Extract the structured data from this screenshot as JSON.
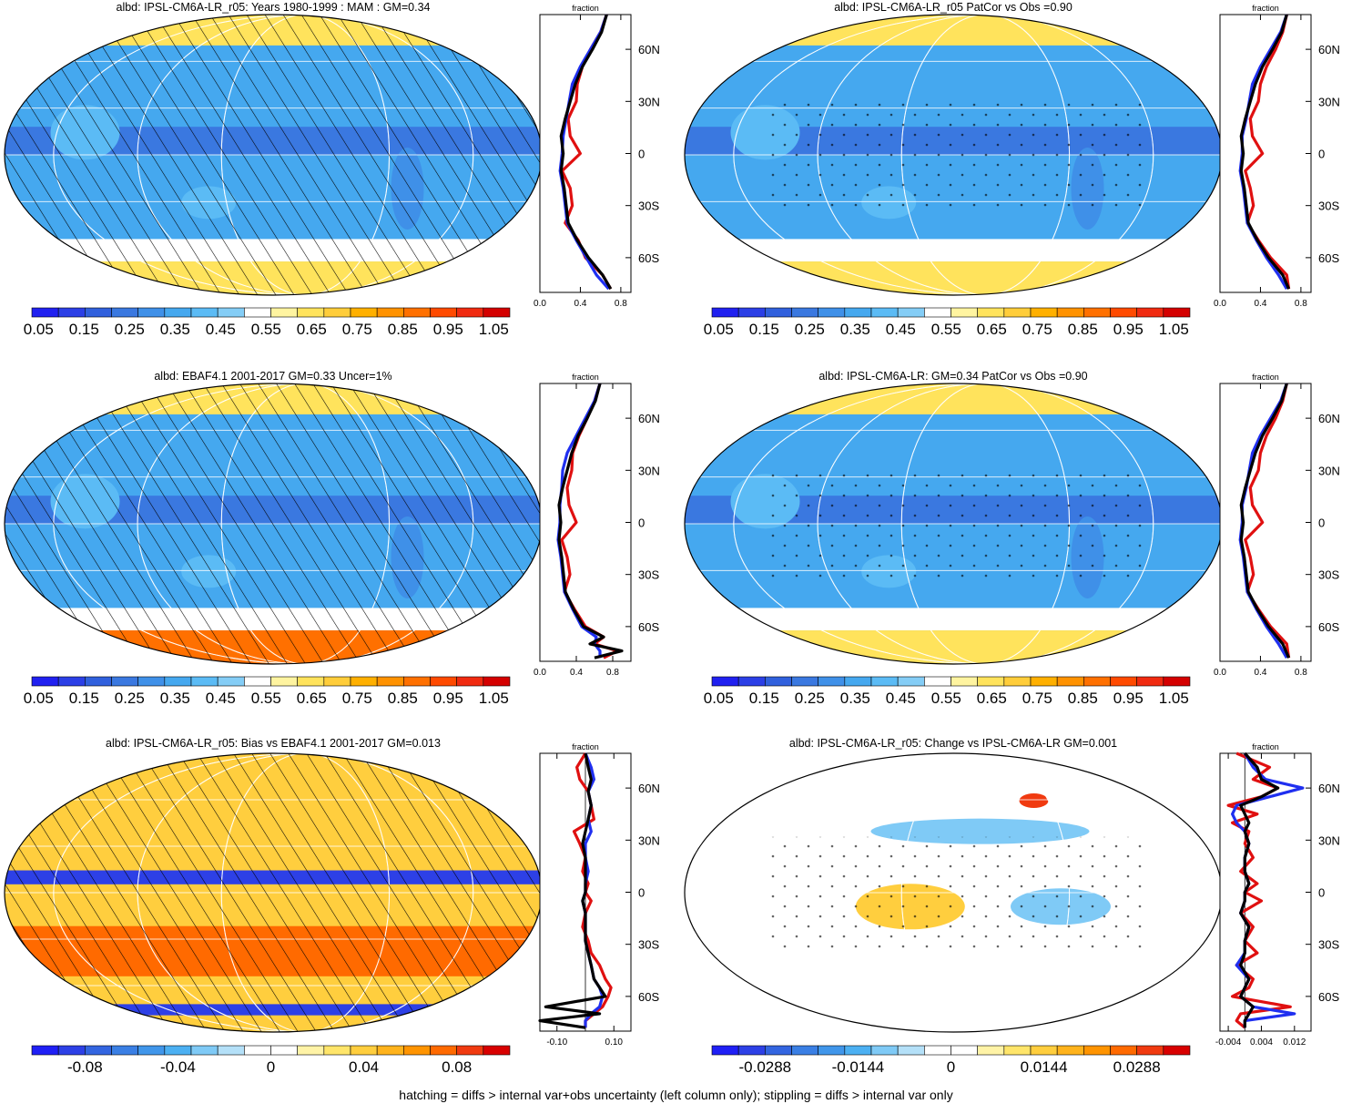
{
  "footer": "hatching = diffs > internal var+obs uncertainty (left column only); stippling = diffs > internal var only",
  "colors": {
    "scale_abs": [
      "#2020f0",
      "#2b3fe6",
      "#3060dd",
      "#3a78e0",
      "#3f90e8",
      "#45a8ef",
      "#5bbbf5",
      "#84cdf6",
      "#ffffff",
      "#fff4a0",
      "#ffe35c",
      "#ffcd3a",
      "#ffb000",
      "#ff9200",
      "#ff7000",
      "#ff4a00",
      "#f02a10",
      "#d40000"
    ],
    "scale_diff": [
      "#1f1ff5",
      "#2d40e6",
      "#3365e0",
      "#3a7fe4",
      "#4096ea",
      "#4cb0f2",
      "#7fcaf6",
      "#b4e0f8",
      "#ffffff",
      "#ffffff",
      "#fff3a6",
      "#ffe56a",
      "#ffce3e",
      "#ffb31c",
      "#ff9400",
      "#ff6a00",
      "#f03a10",
      "#d80000"
    ],
    "obs": "#e01010",
    "model": "#1f2ff0",
    "ens": "#000000"
  },
  "chart_data": [
    {
      "type": "heatmap",
      "title": "albd: IPSL-CM6A-LR_r05: Years 1980-1999 : MAM : GM=0.34",
      "colorbar_scale": "abs",
      "colorbar_labels": [
        "0.05",
        "0.15",
        "0.25",
        "0.35",
        "0.45",
        "0.55",
        "0.65",
        "0.75",
        "0.85",
        "0.95",
        "1.05"
      ],
      "overlay": "hatching",
      "profile": {
        "title": "fraction",
        "xticks": [
          "0.0",
          "0.4",
          "0.8"
        ],
        "xlim": [
          0,
          0.9
        ],
        "yticks": [
          "60N",
          "30N",
          "0",
          "30S",
          "60S"
        ],
        "lat": [
          80,
          70,
          60,
          50,
          40,
          30,
          20,
          10,
          0,
          -10,
          -20,
          -30,
          -40,
          -50,
          -60,
          -70,
          -78
        ],
        "series": [
          {
            "color": "obs",
            "values": [
              0.66,
              0.6,
              0.5,
              0.42,
              0.37,
              0.36,
              0.28,
              0.3,
              0.4,
              0.22,
              0.3,
              0.32,
              0.25,
              0.38,
              0.45,
              0.62,
              0.7
            ]
          },
          {
            "color": "model",
            "values": [
              0.66,
              0.6,
              0.5,
              0.4,
              0.32,
              0.29,
              0.26,
              0.23,
              0.22,
              0.2,
              0.23,
              0.25,
              0.27,
              0.36,
              0.46,
              0.56,
              0.68
            ]
          },
          {
            "color": "ens",
            "values": [
              0.66,
              0.61,
              0.52,
              0.42,
              0.35,
              0.3,
              0.25,
              0.21,
              0.23,
              0.21,
              0.24,
              0.26,
              0.28,
              0.37,
              0.48,
              0.62,
              0.7
            ]
          }
        ]
      }
    },
    {
      "type": "heatmap",
      "title": "albd: IPSL-CM6A-LR_r05 PatCor vs Obs =0.90",
      "colorbar_scale": "abs",
      "colorbar_labels": [
        "0.05",
        "0.15",
        "0.25",
        "0.35",
        "0.45",
        "0.55",
        "0.65",
        "0.75",
        "0.85",
        "0.95",
        "1.05"
      ],
      "overlay": "stippling",
      "profile": {
        "title": "fraction",
        "xticks": [
          "0.0",
          "0.4",
          "0.8"
        ],
        "xlim": [
          0,
          0.9
        ],
        "yticks": [
          "60N",
          "30N",
          "0",
          "30S",
          "60S"
        ],
        "lat": [
          80,
          70,
          60,
          50,
          40,
          30,
          20,
          10,
          0,
          -10,
          -20,
          -30,
          -40,
          -50,
          -60,
          -70,
          -78
        ],
        "series": [
          {
            "color": "obs",
            "values": [
              0.66,
              0.62,
              0.55,
              0.46,
              0.4,
              0.38,
              0.3,
              0.32,
              0.42,
              0.25,
              0.3,
              0.33,
              0.27,
              0.38,
              0.5,
              0.66,
              0.68
            ]
          },
          {
            "color": "model",
            "values": [
              0.66,
              0.6,
              0.5,
              0.4,
              0.32,
              0.29,
              0.26,
              0.22,
              0.22,
              0.2,
              0.23,
              0.25,
              0.27,
              0.36,
              0.46,
              0.58,
              0.66
            ]
          },
          {
            "color": "ens",
            "values": [
              0.66,
              0.61,
              0.52,
              0.42,
              0.35,
              0.3,
              0.25,
              0.21,
              0.23,
              0.21,
              0.24,
              0.26,
              0.28,
              0.37,
              0.48,
              0.62,
              0.68
            ]
          }
        ]
      }
    },
    {
      "type": "heatmap",
      "title": "albd: EBAF4.1 2001-2017 GM=0.33 Uncer=1%",
      "colorbar_scale": "abs",
      "colorbar_labels": [
        "0.05",
        "0.15",
        "0.25",
        "0.35",
        "0.45",
        "0.55",
        "0.65",
        "0.75",
        "0.85",
        "0.95",
        "1.05"
      ],
      "overlay": "hatching",
      "profile": {
        "title": "fraction",
        "xticks": [
          "0.0",
          "0.4",
          "0.8"
        ],
        "xlim": [
          0,
          1.0
        ],
        "yticks": [
          "60N",
          "30N",
          "0",
          "30S",
          "60S"
        ],
        "lat": [
          80,
          70,
          60,
          50,
          40,
          30,
          20,
          10,
          0,
          -10,
          -20,
          -30,
          -40,
          -50,
          -60,
          -66,
          -70,
          -74,
          -78
        ],
        "series": [
          {
            "color": "obs",
            "values": [
              0.66,
              0.6,
              0.52,
              0.43,
              0.36,
              0.35,
              0.3,
              0.32,
              0.4,
              0.24,
              0.3,
              0.33,
              0.27,
              0.38,
              0.5,
              0.7,
              0.6,
              0.85,
              0.7
            ]
          },
          {
            "color": "model",
            "values": [
              0.66,
              0.6,
              0.5,
              0.4,
              0.3,
              0.25,
              0.24,
              0.22,
              0.22,
              0.2,
              0.23,
              0.25,
              0.27,
              0.36,
              0.46,
              0.62,
              0.6,
              0.66,
              0.66
            ]
          },
          {
            "color": "ens",
            "values": [
              0.66,
              0.61,
              0.52,
              0.42,
              0.35,
              0.3,
              0.25,
              0.21,
              0.23,
              0.21,
              0.24,
              0.26,
              0.28,
              0.37,
              0.48,
              0.7,
              0.55,
              0.9,
              0.6
            ]
          }
        ]
      }
    },
    {
      "type": "heatmap",
      "title": "albd: IPSL-CM6A-LR: GM=0.34 PatCor vs Obs =0.90",
      "colorbar_scale": "abs",
      "colorbar_labels": [
        "0.05",
        "0.15",
        "0.25",
        "0.35",
        "0.45",
        "0.55",
        "0.65",
        "0.75",
        "0.85",
        "0.95",
        "1.05"
      ],
      "overlay": "stippling",
      "profile": {
        "title": "fraction",
        "xticks": [
          "0.0",
          "0.4",
          "0.8"
        ],
        "xlim": [
          0,
          0.9
        ],
        "yticks": [
          "60N",
          "30N",
          "0",
          "30S",
          "60S"
        ],
        "lat": [
          80,
          70,
          60,
          50,
          40,
          30,
          20,
          10,
          0,
          -10,
          -20,
          -30,
          -40,
          -50,
          -60,
          -70,
          -78
        ],
        "series": [
          {
            "color": "obs",
            "values": [
              0.66,
              0.62,
              0.55,
              0.46,
              0.4,
              0.38,
              0.3,
              0.32,
              0.42,
              0.25,
              0.3,
              0.33,
              0.27,
              0.38,
              0.5,
              0.66,
              0.68
            ]
          },
          {
            "color": "model",
            "values": [
              0.66,
              0.6,
              0.5,
              0.4,
              0.32,
              0.29,
              0.26,
              0.22,
              0.22,
              0.2,
              0.23,
              0.25,
              0.27,
              0.36,
              0.46,
              0.58,
              0.66
            ]
          },
          {
            "color": "ens",
            "values": [
              0.66,
              0.61,
              0.52,
              0.42,
              0.35,
              0.3,
              0.25,
              0.21,
              0.23,
              0.21,
              0.24,
              0.26,
              0.28,
              0.37,
              0.48,
              0.62,
              0.68
            ]
          }
        ]
      }
    },
    {
      "type": "heatmap",
      "title": "albd: IPSL-CM6A-LR_r05: Bias vs EBAF4.1 2001-2017 GM=0.013",
      "colorbar_scale": "diff",
      "colorbar_labels": [
        "-0.08",
        "-0.04",
        "0",
        "0.04",
        "0.08"
      ],
      "overlay": "hatching",
      "profile": {
        "title": "fraction",
        "xticks": [
          "-0.10",
          "0.10"
        ],
        "xlim": [
          -0.16,
          0.16
        ],
        "zero_line": true,
        "yticks": [
          "60N",
          "30N",
          "0",
          "30S",
          "60S"
        ],
        "lat": [
          80,
          72,
          65,
          58,
          50,
          42,
          35,
          28,
          20,
          12,
          5,
          0,
          -5,
          -12,
          -20,
          -28,
          -35,
          -42,
          -50,
          -55,
          -60,
          -66,
          -70,
          -74,
          -78
        ],
        "series": [
          {
            "color": "obs",
            "values": [
              0,
              -0.03,
              -0.02,
              0.01,
              0.02,
              0.03,
              -0.04,
              -0.02,
              0.0,
              -0.01,
              0.01,
              0.0,
              0.02,
              0.0,
              -0.01,
              0.01,
              0.02,
              0.05,
              0.07,
              0.09,
              0.08,
              0.06,
              0.03,
              0.0,
              0.0
            ]
          },
          {
            "color": "model",
            "values": [
              0,
              0.02,
              0.03,
              0.01,
              0.02,
              0.01,
              0.02,
              0.0,
              0.0,
              0.01,
              0.0,
              0.0,
              -0.01,
              0.0,
              0.0,
              0.0,
              0.01,
              0.02,
              0.03,
              0.05,
              0.06,
              0.05,
              0.02,
              0.0,
              0.0
            ]
          },
          {
            "color": "ens",
            "values": [
              0,
              0.01,
              0.02,
              0.01,
              0.02,
              0.01,
              0.0,
              -0.01,
              0.0,
              0.0,
              0.0,
              0.0,
              -0.01,
              0.0,
              0.0,
              0.0,
              0.01,
              0.02,
              0.03,
              0.05,
              0.07,
              -0.14,
              0.05,
              -0.16,
              0.0
            ]
          }
        ]
      }
    },
    {
      "type": "heatmap",
      "title": "albd: IPSL-CM6A-LR_r05: Change vs IPSL-CM6A-LR GM=0.001",
      "colorbar_scale": "diff",
      "colorbar_labels": [
        "-0.0288",
        "-0.0144",
        "0",
        "0.0144",
        "0.0288"
      ],
      "overlay": "stippling",
      "profile": {
        "title": "fraction",
        "xticks": [
          "-0.004",
          "0.004",
          "0.012"
        ],
        "xlim": [
          -0.006,
          0.016
        ],
        "zero_line": true,
        "yticks": [
          "60N",
          "30N",
          "0",
          "30S",
          "60S"
        ],
        "lat": [
          80,
          72,
          65,
          60,
          55,
          50,
          45,
          40,
          35,
          28,
          20,
          12,
          5,
          0,
          -5,
          -12,
          -20,
          -28,
          -35,
          -42,
          -50,
          -55,
          -60,
          -66,
          -70,
          -74,
          -78
        ],
        "series": [
          {
            "color": "obs",
            "values": [
              -0.002,
              0.006,
              0.002,
              0.008,
              0.004,
              -0.004,
              0.003,
              -0.003,
              0.001,
              0.0,
              0.002,
              -0.001,
              0.003,
              0.0,
              0.004,
              -0.001,
              0.002,
              0.0,
              0.003,
              -0.002,
              0.002,
              0.001,
              -0.003,
              0.011,
              -0.001,
              -0.002,
              0.0
            ]
          },
          {
            "color": "model",
            "values": [
              0.0,
              0.002,
              0.005,
              0.014,
              0.006,
              -0.002,
              -0.003,
              -0.002,
              0.0,
              0.001,
              0.0,
              0.0,
              0.001,
              0.0,
              0.0,
              -0.001,
              0.001,
              0.0,
              0.0,
              -0.002,
              0.001,
              0.0,
              -0.001,
              0.002,
              0.012,
              0.0,
              0.0
            ]
          },
          {
            "color": "ens",
            "values": [
              0.0,
              0.003,
              0.004,
              0.008,
              0.004,
              -0.001,
              0.0,
              0.001,
              0.0,
              0.001,
              0.0,
              0.0,
              0.001,
              0.0,
              0.0,
              -0.001,
              0.001,
              0.0,
              0.0,
              -0.001,
              0.001,
              0.0,
              -0.001,
              0.002,
              0.001,
              0.0,
              0.0
            ]
          }
        ]
      }
    }
  ]
}
